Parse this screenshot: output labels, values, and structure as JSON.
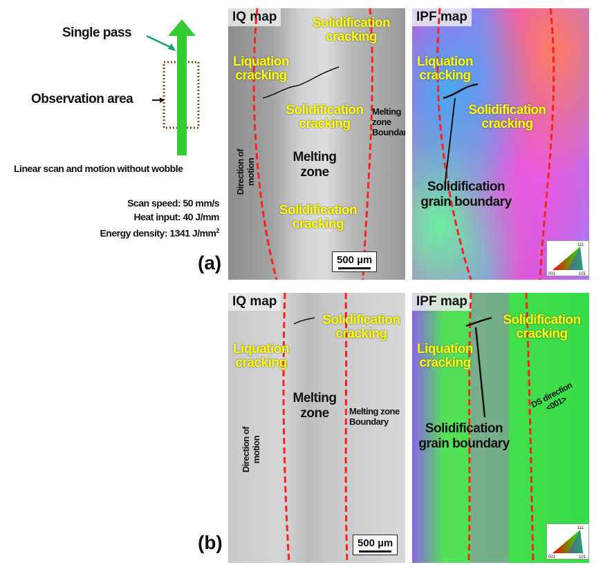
{
  "schematic": {
    "single_pass": "Single pass",
    "observation_area": "Observation area",
    "scan_mode": "Linear scan and motion without wobble",
    "scan_speed": "Scan speed: 50 mm/s",
    "heat_input": "Heat input: 40 J/mm",
    "energy_density": "Energy density: 1341  J/mm",
    "energy_density_sup": "2",
    "colors": {
      "arrow": "#33cc33",
      "box": "#8b4513"
    }
  },
  "panel_a": {
    "label": "(a)",
    "iq": {
      "title": "IQ map",
      "solid_top": "Solidification cracking",
      "liquation": "Liquation cracking",
      "solid_mid": "Solidification cracking",
      "melting_zone": "Melting zone",
      "boundary": "Melting zone Boundary",
      "direction": "Direction of motion",
      "solid_bottom": "Solidification cracking",
      "scale_bar": "500 µm"
    },
    "ipf": {
      "title": "IPF map",
      "liquation": "Liquation cracking",
      "solid": "Solidification cracking",
      "grain_boundary": "Solidification grain boundary",
      "legend": [
        "111",
        "001",
        "101"
      ]
    }
  },
  "panel_b": {
    "label": "(b)",
    "iq": {
      "title": "IQ map",
      "solid": "Solidification cracking",
      "liquation": "Liquation cracking",
      "melting_zone": "Melting zone",
      "boundary": "Melting zone Boundary",
      "direction": "Direction of motion",
      "scale_bar": "500 µm"
    },
    "ipf": {
      "title": "IPF map",
      "solid": "Solidification cracking",
      "liquation": "Liquation cracking",
      "grain_boundary": "Solidification grain boundary",
      "ds_direction": "DS direction <001>",
      "legend": [
        "111",
        "001",
        "101"
      ]
    }
  },
  "colors": {
    "annotation": "#ffff00",
    "fusion_line": "#ff2020"
  }
}
